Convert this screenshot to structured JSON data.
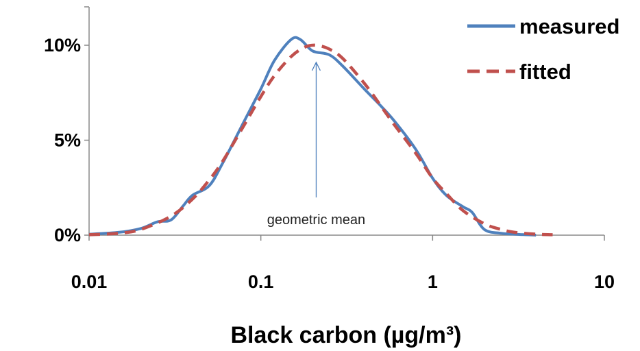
{
  "chart_data": {
    "type": "line",
    "xlabel": "Black carbon (µg/m³)",
    "ylabel": "",
    "xscale": "log",
    "xlim": [
      0.01,
      10
    ],
    "ylim": [
      0,
      10.5
    ],
    "x_ticks": [
      0.01,
      0.1,
      1,
      10
    ],
    "x_tick_labels": [
      "0.01",
      "0.1",
      "1",
      "10"
    ],
    "y_ticks": [
      0,
      5,
      10
    ],
    "y_tick_labels": [
      "0%",
      "5%",
      "10%"
    ],
    "grid": false,
    "legend_position": "top-right",
    "annotation": {
      "text": "geometric mean",
      "x": 0.21,
      "arrow_to_y": 9.1
    },
    "series": [
      {
        "name": "measured",
        "color": "#4f81bd",
        "style": "solid",
        "points": [
          [
            0.01,
            0.05
          ],
          [
            0.015,
            0.15
          ],
          [
            0.02,
            0.35
          ],
          [
            0.025,
            0.7
          ],
          [
            0.03,
            0.8
          ],
          [
            0.035,
            1.5
          ],
          [
            0.04,
            2.1
          ],
          [
            0.05,
            2.6
          ],
          [
            0.06,
            3.8
          ],
          [
            0.08,
            6.0
          ],
          [
            0.1,
            7.7
          ],
          [
            0.12,
            9.2
          ],
          [
            0.15,
            10.3
          ],
          [
            0.17,
            10.3
          ],
          [
            0.2,
            9.7
          ],
          [
            0.25,
            9.5
          ],
          [
            0.3,
            8.9
          ],
          [
            0.4,
            7.7
          ],
          [
            0.5,
            6.8
          ],
          [
            0.6,
            6.0
          ],
          [
            0.8,
            4.5
          ],
          [
            1.0,
            3.0
          ],
          [
            1.2,
            2.1
          ],
          [
            1.5,
            1.5
          ],
          [
            1.7,
            1.2
          ],
          [
            2.0,
            0.3
          ],
          [
            2.5,
            0.1
          ],
          [
            3.0,
            0.05
          ],
          [
            4.0,
            0.0
          ]
        ]
      },
      {
        "name": "fitted",
        "color": "#c0504d",
        "style": "dashed",
        "points": [
          [
            0.01,
            0.02
          ],
          [
            0.015,
            0.1
          ],
          [
            0.02,
            0.3
          ],
          [
            0.03,
            1.0
          ],
          [
            0.04,
            1.9
          ],
          [
            0.05,
            2.9
          ],
          [
            0.06,
            3.9
          ],
          [
            0.08,
            5.8
          ],
          [
            0.1,
            7.3
          ],
          [
            0.12,
            8.4
          ],
          [
            0.15,
            9.4
          ],
          [
            0.18,
            9.9
          ],
          [
            0.21,
            10.0
          ],
          [
            0.25,
            9.8
          ],
          [
            0.3,
            9.3
          ],
          [
            0.4,
            8.0
          ],
          [
            0.5,
            6.8
          ],
          [
            0.6,
            5.8
          ],
          [
            0.8,
            4.3
          ],
          [
            1.0,
            3.0
          ],
          [
            1.2,
            2.2
          ],
          [
            1.5,
            1.3
          ],
          [
            2.0,
            0.6
          ],
          [
            2.5,
            0.3
          ],
          [
            3.0,
            0.15
          ],
          [
            4.0,
            0.05
          ],
          [
            5.0,
            0.02
          ]
        ]
      }
    ]
  }
}
